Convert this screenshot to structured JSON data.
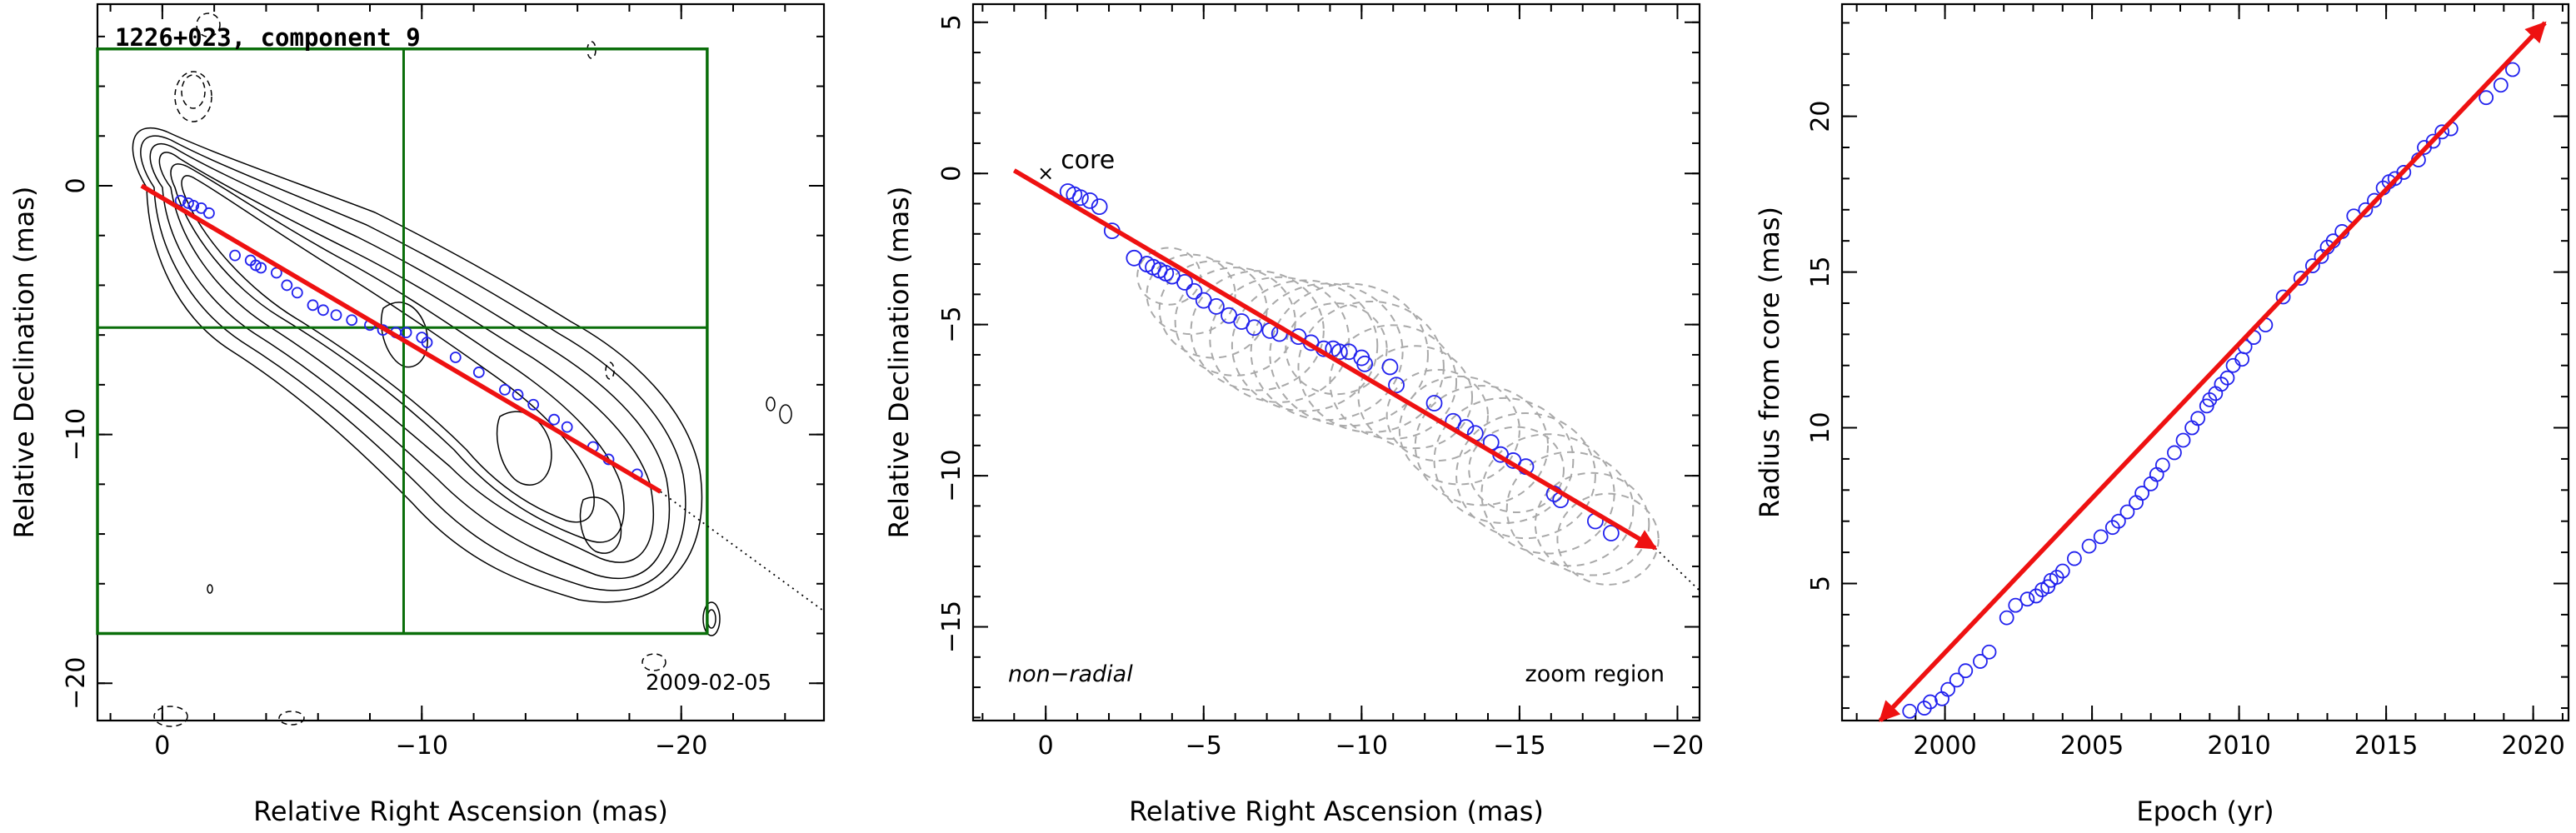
{
  "chart_data": [
    {
      "type": "contour",
      "title": "1226+023, component 9",
      "xlabel": "Relative Right Ascension (mas)",
      "ylabel": "Relative Declination (mas)",
      "xlim": [
        2.5,
        -25.5
      ],
      "ylim": [
        -21.5,
        7.3
      ],
      "xticks": [
        0,
        -10,
        -20
      ],
      "yticks": [
        0,
        -10,
        -20
      ],
      "epoch_label": "2009-02-05",
      "grid": false,
      "zoom_region": {
        "x": [
          2.5,
          -21
        ],
        "y": [
          -18,
          5.5
        ],
        "crosshair": [
          -9.3,
          -5.7
        ]
      },
      "fit_line": {
        "from": [
          0.8,
          0
        ],
        "to": [
          -19.2,
          -12.3
        ],
        "dotted_extension_to": [
          -25.5,
          -17.1
        ],
        "color": "#ee1111"
      },
      "positions": [
        {
          "x": -0.7,
          "y": -0.6
        },
        {
          "x": -1.0,
          "y": -0.7
        },
        {
          "x": -1.2,
          "y": -0.8
        },
        {
          "x": -1.5,
          "y": -0.9
        },
        {
          "x": -1.8,
          "y": -1.1
        },
        {
          "x": -2.8,
          "y": -2.8
        },
        {
          "x": -3.4,
          "y": -3.0
        },
        {
          "x": -3.6,
          "y": -3.2
        },
        {
          "x": -3.8,
          "y": -3.3
        },
        {
          "x": -4.4,
          "y": -3.5
        },
        {
          "x": -4.8,
          "y": -4.0
        },
        {
          "x": -5.2,
          "y": -4.3
        },
        {
          "x": -5.8,
          "y": -4.8
        },
        {
          "x": -6.2,
          "y": -5.0
        },
        {
          "x": -6.7,
          "y": -5.2
        },
        {
          "x": -7.3,
          "y": -5.4
        },
        {
          "x": -8.0,
          "y": -5.6
        },
        {
          "x": -8.5,
          "y": -5.8
        },
        {
          "x": -9.0,
          "y": -5.9
        },
        {
          "x": -9.4,
          "y": -5.9
        },
        {
          "x": -10.0,
          "y": -6.1
        },
        {
          "x": -10.2,
          "y": -6.3
        },
        {
          "x": -11.3,
          "y": -6.9
        },
        {
          "x": -12.2,
          "y": -7.5
        },
        {
          "x": -13.2,
          "y": -8.2
        },
        {
          "x": -13.7,
          "y": -8.4
        },
        {
          "x": -14.3,
          "y": -8.8
        },
        {
          "x": -15.1,
          "y": -9.4
        },
        {
          "x": -15.6,
          "y": -9.7
        },
        {
          "x": -16.6,
          "y": -10.5
        },
        {
          "x": -17.2,
          "y": -11.0
        },
        {
          "x": -18.3,
          "y": -11.6
        }
      ]
    },
    {
      "type": "scatter",
      "xlabel": "Relative Right Ascension (mas)",
      "ylabel": "Relative Declination (mas)",
      "xlim": [
        2.3,
        -20.7
      ],
      "ylim": [
        -18.1,
        5.6
      ],
      "xticks": [
        0,
        -5,
        -10,
        -15,
        -20
      ],
      "yticks": [
        5,
        0,
        -5,
        -10,
        -15
      ],
      "core_label": "core",
      "core_marker": {
        "x": 0,
        "y": 0
      },
      "left_annotation": "non−radial",
      "right_annotation": "zoom region",
      "fit_line": {
        "from": [
          1.0,
          0.1
        ],
        "to": [
          -19.3,
          -12.4
        ],
        "dotted_extension_to": [
          -20.7,
          -13.8
        ],
        "color": "#ee1111"
      },
      "gaussian_components": [
        {
          "x": -3.9,
          "y": -3.4,
          "r": 1.0
        },
        {
          "x": -4.6,
          "y": -4.0,
          "r": 1.4
        },
        {
          "x": -5.3,
          "y": -4.5,
          "r": 1.7
        },
        {
          "x": -6.0,
          "y": -4.9,
          "r": 1.9
        },
        {
          "x": -6.7,
          "y": -5.2,
          "r": 2.1
        },
        {
          "x": -7.4,
          "y": -5.5,
          "r": 2.2
        },
        {
          "x": -8.2,
          "y": -5.7,
          "r": 2.3
        },
        {
          "x": -8.9,
          "y": -5.9,
          "r": 2.4
        },
        {
          "x": -9.6,
          "y": -6.0,
          "r": 2.5
        },
        {
          "x": -10.3,
          "y": -6.4,
          "r": 2.3
        },
        {
          "x": -11.0,
          "y": -6.9,
          "r": 2.0
        },
        {
          "x": -11.7,
          "y": -7.4,
          "r": 1.8
        },
        {
          "x": -12.4,
          "y": -8.0,
          "r": 1.6
        },
        {
          "x": -13.1,
          "y": -8.5,
          "r": 1.9
        },
        {
          "x": -13.8,
          "y": -9.0,
          "r": 2.1
        },
        {
          "x": -14.5,
          "y": -9.5,
          "r": 2.2
        },
        {
          "x": -15.2,
          "y": -10.0,
          "r": 2.2
        },
        {
          "x": -15.9,
          "y": -10.6,
          "r": 2.1
        },
        {
          "x": -16.6,
          "y": -11.1,
          "r": 2.0
        },
        {
          "x": -17.3,
          "y": -11.6,
          "r": 1.8
        },
        {
          "x": -17.8,
          "y": -12.1,
          "r": 1.6
        },
        {
          "x": -9.2,
          "y": -5.8,
          "r": 1.6
        },
        {
          "x": -14.9,
          "y": -9.8,
          "r": 1.5
        }
      ],
      "positions": [
        {
          "x": -0.7,
          "y": -0.6
        },
        {
          "x": -0.9,
          "y": -0.7
        },
        {
          "x": -1.1,
          "y": -0.8
        },
        {
          "x": -1.4,
          "y": -0.9
        },
        {
          "x": -1.7,
          "y": -1.1
        },
        {
          "x": -2.1,
          "y": -1.9
        },
        {
          "x": -2.8,
          "y": -2.8
        },
        {
          "x": -3.2,
          "y": -3.0
        },
        {
          "x": -3.4,
          "y": -3.1
        },
        {
          "x": -3.6,
          "y": -3.2
        },
        {
          "x": -3.8,
          "y": -3.3
        },
        {
          "x": -4.0,
          "y": -3.4
        },
        {
          "x": -4.4,
          "y": -3.6
        },
        {
          "x": -4.7,
          "y": -3.9
        },
        {
          "x": -5.0,
          "y": -4.2
        },
        {
          "x": -5.4,
          "y": -4.4
        },
        {
          "x": -5.8,
          "y": -4.7
        },
        {
          "x": -6.2,
          "y": -4.9
        },
        {
          "x": -6.6,
          "y": -5.1
        },
        {
          "x": -7.1,
          "y": -5.2
        },
        {
          "x": -7.4,
          "y": -5.3
        },
        {
          "x": -8.0,
          "y": -5.4
        },
        {
          "x": -8.4,
          "y": -5.6
        },
        {
          "x": -8.8,
          "y": -5.8
        },
        {
          "x": -9.1,
          "y": -5.8
        },
        {
          "x": -9.3,
          "y": -5.9
        },
        {
          "x": -9.6,
          "y": -5.9
        },
        {
          "x": -10.0,
          "y": -6.1
        },
        {
          "x": -10.1,
          "y": -6.3
        },
        {
          "x": -10.9,
          "y": -6.4
        },
        {
          "x": -11.1,
          "y": -7.0
        },
        {
          "x": -12.3,
          "y": -7.6
        },
        {
          "x": -12.9,
          "y": -8.2
        },
        {
          "x": -13.3,
          "y": -8.4
        },
        {
          "x": -13.6,
          "y": -8.6
        },
        {
          "x": -14.1,
          "y": -8.9
        },
        {
          "x": -14.4,
          "y": -9.3
        },
        {
          "x": -14.8,
          "y": -9.5
        },
        {
          "x": -15.2,
          "y": -9.7
        },
        {
          "x": -16.1,
          "y": -10.6
        },
        {
          "x": -16.3,
          "y": -10.8
        },
        {
          "x": -17.4,
          "y": -11.5
        },
        {
          "x": -17.9,
          "y": -11.9
        }
      ]
    },
    {
      "type": "scatter",
      "xlabel": "Epoch (yr)",
      "ylabel": "Radius from core (mas)",
      "xlim": [
        1996.5,
        2021.2
      ],
      "ylim": [
        0.6,
        23.6
      ],
      "xticks": [
        2000,
        2005,
        2010,
        2015,
        2020
      ],
      "yticks": [
        5,
        10,
        15,
        20
      ],
      "fit_line": {
        "from": [
          1997.8,
          0.6
        ],
        "to": [
          2020.4,
          23.0
        ],
        "color": "#ee1111"
      },
      "x": [
        1998.8,
        1999.3,
        1999.5,
        1999.9,
        2000.1,
        2000.4,
        2000.7,
        2001.2,
        2001.5,
        2002.1,
        2002.4,
        2002.8,
        2003.1,
        2003.3,
        2003.5,
        2003.6,
        2003.8,
        2004.0,
        2004.4,
        2004.9,
        2005.3,
        2005.7,
        2005.9,
        2006.2,
        2006.5,
        2006.7,
        2007.0,
        2007.2,
        2007.4,
        2007.8,
        2008.1,
        2008.4,
        2008.6,
        2008.9,
        2009.0,
        2009.2,
        2009.4,
        2009.6,
        2009.8,
        2010.1,
        2010.2,
        2010.5,
        2010.9,
        2011.5,
        2012.1,
        2012.5,
        2012.8,
        2013.0,
        2013.2,
        2013.5,
        2013.9,
        2014.3,
        2014.6,
        2014.9,
        2015.1,
        2015.3,
        2015.6,
        2016.1,
        2016.3,
        2016.6,
        2016.9,
        2017.2,
        2018.4,
        2018.9,
        2019.3
      ],
      "y": [
        0.9,
        1.0,
        1.2,
        1.3,
        1.6,
        1.9,
        2.2,
        2.5,
        2.8,
        3.9,
        4.3,
        4.5,
        4.6,
        4.8,
        4.9,
        5.1,
        5.2,
        5.4,
        5.8,
        6.2,
        6.5,
        6.8,
        7.0,
        7.3,
        7.6,
        7.9,
        8.2,
        8.5,
        8.8,
        9.2,
        9.6,
        10.0,
        10.3,
        10.7,
        10.9,
        11.1,
        11.4,
        11.6,
        12.0,
        12.2,
        12.6,
        12.9,
        13.3,
        14.2,
        14.8,
        15.2,
        15.5,
        15.8,
        16.0,
        16.3,
        16.8,
        17.0,
        17.3,
        17.7,
        17.9,
        18.0,
        18.2,
        18.6,
        19.0,
        19.2,
        19.5,
        19.6,
        20.6,
        21.0,
        21.5
      ]
    }
  ]
}
